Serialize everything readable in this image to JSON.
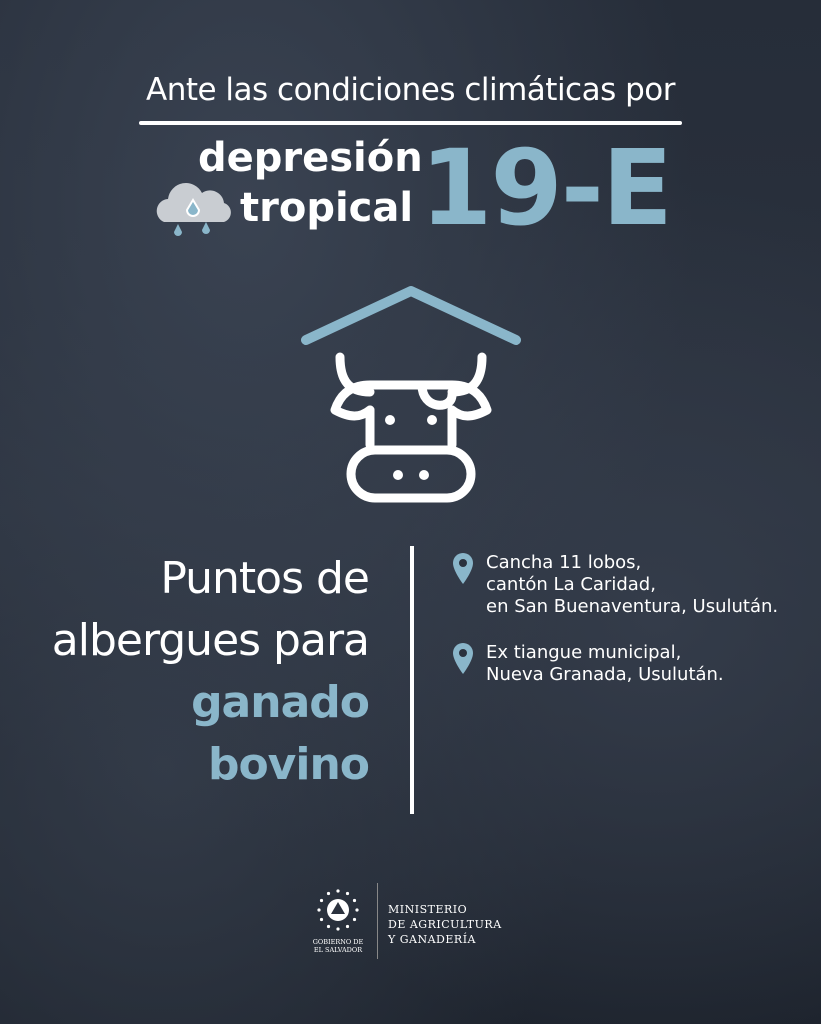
{
  "header": {
    "intro": "Ante las condiciones climáticas por",
    "line1": "depresión",
    "line2": "tropical",
    "storm_id": "19-E",
    "weather_icon": "rain-cloud-icon"
  },
  "main_icon": "cow-shelter-icon",
  "title": {
    "line1": "Puntos de",
    "line2": "albergues para",
    "line3": "ganado",
    "line4": "bovino"
  },
  "locations": [
    {
      "icon": "map-pin-icon",
      "lines": [
        "Cancha 11 lobos,",
        "cantón La Caridad,",
        "en San Buenaventura, Usulután."
      ]
    },
    {
      "icon": "map-pin-icon",
      "lines": [
        "Ex tiangue municipal,",
        "Nueva Granada, Usulután."
      ]
    }
  ],
  "footer": {
    "gov_lines": [
      "GOBIERNO DE",
      "EL SALVADOR"
    ],
    "ministry_lines": [
      "MINISTERIO",
      "DE AGRICULTURA",
      "Y GANADERÍA"
    ]
  },
  "colors": {
    "accent": "#8ab6ca",
    "background": "#262d39",
    "text": "#ffffff"
  }
}
